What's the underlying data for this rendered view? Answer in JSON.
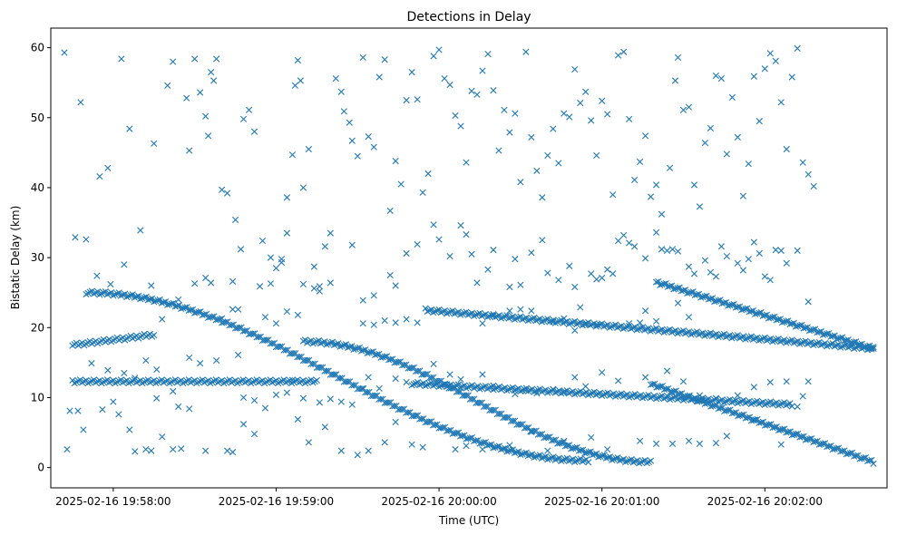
{
  "chart_data": {
    "type": "scatter",
    "title": "Detections in Delay",
    "xlabel": "Time (UTC)",
    "ylabel": "Bistatic Delay (km)",
    "marker": "x",
    "color": "#1f77b4",
    "x_unit": "seconds after 2025-02-16 19:57:00",
    "xlim": [
      -23,
      285
    ],
    "ylim": [
      -2.9,
      62.8
    ],
    "xticks": [
      {
        "value": 0,
        "label": "2025-02-16 19:58:00"
      },
      {
        "value": 60,
        "label": "2025-02-16 19:59:00"
      },
      {
        "value": 120,
        "label": "2025-02-16 20:00:00"
      },
      {
        "value": 180,
        "label": "2025-02-16 20:01:00"
      },
      {
        "value": 240,
        "label": "2025-02-16 20:02:00"
      }
    ],
    "yticks": [
      0,
      10,
      20,
      30,
      40,
      50,
      60
    ],
    "tracks": [
      {
        "name": "track-a",
        "x_range": [
          -10,
          175
        ],
        "y_start": 25.0,
        "y_end": 1.0,
        "shape": "descending-curve"
      },
      {
        "name": "track-b",
        "x_range": [
          70,
          198
        ],
        "y_start": 18.0,
        "y_end": 0.8,
        "shape": "descending-curve"
      },
      {
        "name": "track-c",
        "x_range": [
          198,
          280
        ],
        "y_start": 12.0,
        "y_end": 0.8,
        "shape": "descending"
      },
      {
        "name": "track-d",
        "x_range": [
          -15,
          75
        ],
        "y_start": 12.3,
        "y_end": 12.3,
        "shape": "flat"
      },
      {
        "name": "track-e",
        "x_range": [
          -15,
          15
        ],
        "y_start": 17.5,
        "y_end": 19.0,
        "shape": "rising"
      },
      {
        "name": "track-f",
        "x_range": [
          115,
          280
        ],
        "y_start": 22.5,
        "y_end": 17.0,
        "shape": "descending"
      },
      {
        "name": "track-g",
        "x_range": [
          200,
          280
        ],
        "y_start": 26.5,
        "y_end": 17.0,
        "shape": "descending"
      },
      {
        "name": "track-h",
        "x_range": [
          110,
          250
        ],
        "y_start": 12.0,
        "y_end": 9.0,
        "shape": "descending"
      }
    ],
    "clutter_points": [
      [
        -18,
        59.3
      ],
      [
        -12,
        52.2
      ],
      [
        -5,
        41.6
      ],
      [
        -2,
        42.8
      ],
      [
        3,
        58.4
      ],
      [
        6,
        48.4
      ],
      [
        15,
        46.3
      ],
      [
        20,
        54.6
      ],
      [
        22,
        58.0
      ],
      [
        27,
        52.8
      ],
      [
        28,
        45.3
      ],
      [
        30,
        58.4
      ],
      [
        32,
        53.6
      ],
      [
        34,
        50.2
      ],
      [
        35,
        47.4
      ],
      [
        36,
        56.5
      ],
      [
        37,
        55.3
      ],
      [
        38,
        58.4
      ],
      [
        40,
        39.7
      ],
      [
        42,
        39.2
      ],
      [
        45,
        35.4
      ],
      [
        47,
        31.2
      ],
      [
        48,
        49.8
      ],
      [
        50,
        51.1
      ],
      [
        52,
        48.0
      ],
      [
        55,
        32.4
      ],
      [
        58,
        30.0
      ],
      [
        60,
        28.5
      ],
      [
        62,
        29.3
      ],
      [
        64,
        38.6
      ],
      [
        66,
        44.7
      ],
      [
        67,
        54.6
      ],
      [
        68,
        58.2
      ],
      [
        69,
        55.3
      ],
      [
        70,
        40.0
      ],
      [
        72,
        45.5
      ],
      [
        74,
        28.7
      ],
      [
        76,
        25.9
      ],
      [
        78,
        31.6
      ],
      [
        80,
        33.5
      ],
      [
        82,
        55.6
      ],
      [
        84,
        53.7
      ],
      [
        85,
        50.9
      ],
      [
        87,
        49.3
      ],
      [
        88,
        46.7
      ],
      [
        90,
        44.5
      ],
      [
        92,
        58.6
      ],
      [
        94,
        47.3
      ],
      [
        96,
        45.8
      ],
      [
        98,
        55.8
      ],
      [
        100,
        58.3
      ],
      [
        102,
        36.7
      ],
      [
        104,
        43.8
      ],
      [
        106,
        40.5
      ],
      [
        108,
        52.5
      ],
      [
        110,
        56.5
      ],
      [
        112,
        52.6
      ],
      [
        114,
        39.3
      ],
      [
        116,
        42.0
      ],
      [
        118,
        58.8
      ],
      [
        120,
        59.7
      ],
      [
        122,
        55.6
      ],
      [
        124,
        54.7
      ],
      [
        126,
        50.3
      ],
      [
        128,
        48.8
      ],
      [
        130,
        43.6
      ],
      [
        132,
        53.8
      ],
      [
        134,
        53.3
      ],
      [
        136,
        56.7
      ],
      [
        138,
        59.1
      ],
      [
        140,
        53.9
      ],
      [
        142,
        45.3
      ],
      [
        144,
        51.1
      ],
      [
        146,
        47.9
      ],
      [
        148,
        50.6
      ],
      [
        150,
        40.8
      ],
      [
        152,
        59.4
      ],
      [
        154,
        47.2
      ],
      [
        156,
        42.4
      ],
      [
        158,
        38.6
      ],
      [
        160,
        44.6
      ],
      [
        162,
        48.4
      ],
      [
        164,
        43.5
      ],
      [
        166,
        50.6
      ],
      [
        168,
        50.1
      ],
      [
        170,
        56.9
      ],
      [
        172,
        52.1
      ],
      [
        174,
        53.7
      ],
      [
        176,
        49.6
      ],
      [
        178,
        44.6
      ],
      [
        180,
        52.4
      ],
      [
        182,
        50.5
      ],
      [
        184,
        39.0
      ],
      [
        186,
        58.9
      ],
      [
        188,
        59.4
      ],
      [
        190,
        49.8
      ],
      [
        192,
        41.1
      ],
      [
        194,
        43.7
      ],
      [
        196,
        47.4
      ],
      [
        198,
        38.7
      ],
      [
        200,
        40.4
      ],
      [
        202,
        36.2
      ],
      [
        205,
        42.8
      ],
      [
        207,
        55.3
      ],
      [
        208,
        58.6
      ],
      [
        210,
        51.1
      ],
      [
        212,
        51.5
      ],
      [
        214,
        40.4
      ],
      [
        216,
        37.3
      ],
      [
        218,
        46.4
      ],
      [
        220,
        48.5
      ],
      [
        222,
        56.0
      ],
      [
        224,
        55.6
      ],
      [
        226,
        44.8
      ],
      [
        228,
        52.9
      ],
      [
        230,
        47.2
      ],
      [
        232,
        38.8
      ],
      [
        234,
        43.4
      ],
      [
        236,
        55.9
      ],
      [
        238,
        49.5
      ],
      [
        240,
        57.0
      ],
      [
        242,
        59.2
      ],
      [
        244,
        58.1
      ],
      [
        246,
        52.2
      ],
      [
        248,
        45.5
      ],
      [
        250,
        55.8
      ],
      [
        252,
        59.9
      ],
      [
        254,
        43.6
      ],
      [
        256,
        41.9
      ],
      [
        258,
        40.2
      ],
      [
        -17,
        2.6
      ],
      [
        -16,
        8.1
      ],
      [
        -13,
        8.1
      ],
      [
        -11,
        5.4
      ],
      [
        -4,
        8.3
      ],
      [
        0,
        9.4
      ],
      [
        2,
        7.6
      ],
      [
        6,
        5.4
      ],
      [
        8,
        2.3
      ],
      [
        12,
        2.6
      ],
      [
        14,
        2.4
      ],
      [
        16,
        9.9
      ],
      [
        18,
        4.4
      ],
      [
        22,
        2.6
      ],
      [
        25,
        2.7
      ],
      [
        28,
        8.4
      ],
      [
        34,
        2.4
      ],
      [
        42,
        2.4
      ],
      [
        44,
        2.2
      ],
      [
        48,
        6.2
      ],
      [
        52,
        4.8
      ],
      [
        56,
        8.5
      ],
      [
        68,
        6.9
      ],
      [
        72,
        3.6
      ],
      [
        78,
        5.8
      ],
      [
        84,
        2.4
      ],
      [
        90,
        1.8
      ],
      [
        94,
        2.4
      ],
      [
        100,
        3.6
      ],
      [
        104,
        6.5
      ],
      [
        110,
        3.3
      ],
      [
        114,
        2.9
      ],
      [
        126,
        2.6
      ],
      [
        130,
        3.1
      ],
      [
        136,
        2.6
      ],
      [
        146,
        3.2
      ],
      [
        154,
        5.1
      ],
      [
        160,
        2.4
      ],
      [
        166,
        3.8
      ],
      [
        176,
        4.3
      ],
      [
        182,
        2.6
      ],
      [
        194,
        3.8
      ],
      [
        200,
        3.4
      ],
      [
        206,
        3.4
      ],
      [
        212,
        3.8
      ],
      [
        216,
        3.4
      ],
      [
        222,
        3.5
      ],
      [
        226,
        4.5
      ],
      [
        236,
        6.8
      ],
      [
        246,
        3.3
      ],
      [
        252,
        8.7
      ],
      [
        -14,
        32.9
      ],
      [
        -10,
        32.6
      ],
      [
        -6,
        27.4
      ],
      [
        -1,
        26.2
      ],
      [
        4,
        29.0
      ],
      [
        10,
        33.9
      ],
      [
        14,
        26.0
      ],
      [
        18,
        21.2
      ],
      [
        24,
        24.0
      ],
      [
        30,
        26.3
      ],
      [
        34,
        27.1
      ],
      [
        36,
        26.4
      ],
      [
        44,
        26.6
      ],
      [
        46,
        22.6
      ],
      [
        54,
        25.9
      ],
      [
        58,
        26.3
      ],
      [
        62,
        29.8
      ],
      [
        64,
        33.5
      ],
      [
        70,
        26.2
      ],
      [
        74,
        25.6
      ],
      [
        76,
        25.2
      ],
      [
        80,
        26.4
      ],
      [
        88,
        31.8
      ],
      [
        92,
        23.9
      ],
      [
        96,
        24.6
      ],
      [
        102,
        27.5
      ],
      [
        104,
        26.0
      ],
      [
        108,
        30.6
      ],
      [
        112,
        31.9
      ],
      [
        118,
        34.7
      ],
      [
        120,
        32.6
      ],
      [
        124,
        30.2
      ],
      [
        128,
        34.6
      ],
      [
        130,
        33.3
      ],
      [
        132,
        30.5
      ],
      [
        134,
        26.4
      ],
      [
        138,
        28.3
      ],
      [
        140,
        31.1
      ],
      [
        146,
        25.8
      ],
      [
        148,
        29.8
      ],
      [
        150,
        26.1
      ],
      [
        154,
        30.7
      ],
      [
        158,
        32.5
      ],
      [
        160,
        27.8
      ],
      [
        164,
        26.8
      ],
      [
        168,
        28.8
      ],
      [
        170,
        25.8
      ],
      [
        172,
        22.9
      ],
      [
        176,
        27.7
      ],
      [
        178,
        26.9
      ],
      [
        180,
        27.1
      ],
      [
        182,
        28.3
      ],
      [
        184,
        27.7
      ],
      [
        186,
        32.4
      ],
      [
        188,
        33.2
      ],
      [
        190,
        32.1
      ],
      [
        192,
        31.6
      ],
      [
        196,
        29.9
      ],
      [
        200,
        33.6
      ],
      [
        202,
        31.2
      ],
      [
        204,
        31.0
      ],
      [
        206,
        31.2
      ],
      [
        208,
        30.9
      ],
      [
        212,
        28.7
      ],
      [
        214,
        27.7
      ],
      [
        218,
        29.6
      ],
      [
        220,
        27.9
      ],
      [
        222,
        27.3
      ],
      [
        224,
        31.6
      ],
      [
        226,
        30.2
      ],
      [
        230,
        29.2
      ],
      [
        232,
        28.2
      ],
      [
        234,
        29.8
      ],
      [
        236,
        32.2
      ],
      [
        238,
        30.6
      ],
      [
        240,
        27.3
      ],
      [
        242,
        26.8
      ],
      [
        244,
        31.1
      ],
      [
        246,
        31.0
      ],
      [
        248,
        29.2
      ],
      [
        252,
        31.0
      ],
      [
        256,
        23.7
      ],
      [
        -8,
        14.9
      ],
      [
        -2,
        13.9
      ],
      [
        4,
        13.5
      ],
      [
        8,
        12.8
      ],
      [
        12,
        15.3
      ],
      [
        16,
        14.0
      ],
      [
        22,
        10.9
      ],
      [
        24,
        8.7
      ],
      [
        28,
        15.7
      ],
      [
        32,
        14.9
      ],
      [
        38,
        15.3
      ],
      [
        46,
        16.1
      ],
      [
        48,
        10.0
      ],
      [
        52,
        9.6
      ],
      [
        60,
        10.4
      ],
      [
        64,
        10.7
      ],
      [
        66,
        12.5
      ],
      [
        70,
        9.9
      ],
      [
        76,
        9.3
      ],
      [
        80,
        9.8
      ],
      [
        84,
        9.4
      ],
      [
        88,
        9.0
      ],
      [
        92,
        11.3
      ],
      [
        94,
        12.9
      ],
      [
        98,
        11.3
      ],
      [
        104,
        12.7
      ],
      [
        108,
        12.2
      ],
      [
        118,
        14.8
      ],
      [
        124,
        13.3
      ],
      [
        128,
        12.6
      ],
      [
        136,
        13.3
      ],
      [
        140,
        11.7
      ],
      [
        148,
        10.5
      ],
      [
        152,
        11.0
      ],
      [
        156,
        10.6
      ],
      [
        162,
        11.2
      ],
      [
        166,
        10.8
      ],
      [
        170,
        12.9
      ],
      [
        174,
        11.6
      ],
      [
        180,
        13.6
      ],
      [
        186,
        12.4
      ],
      [
        196,
        12.9
      ],
      [
        204,
        13.8
      ],
      [
        210,
        12.3
      ],
      [
        216,
        10.3
      ],
      [
        222,
        9.9
      ],
      [
        230,
        10.3
      ],
      [
        236,
        11.5
      ],
      [
        242,
        12.2
      ],
      [
        248,
        12.3
      ],
      [
        254,
        10.2
      ],
      [
        256,
        12.3
      ],
      [
        190,
        20.6
      ],
      [
        194,
        20.7
      ],
      [
        196,
        22.4
      ],
      [
        200,
        20.9
      ],
      [
        208,
        23.5
      ],
      [
        212,
        21.5
      ],
      [
        162,
        20.8
      ],
      [
        166,
        21.3
      ],
      [
        170,
        19.6
      ],
      [
        174,
        20.5
      ],
      [
        178,
        20.4
      ],
      [
        136,
        20.6
      ],
      [
        140,
        21.7
      ],
      [
        146,
        22.4
      ],
      [
        150,
        22.6
      ],
      [
        154,
        22.4
      ],
      [
        92,
        20.6
      ],
      [
        96,
        20.4
      ],
      [
        100,
        21.0
      ],
      [
        104,
        20.7
      ],
      [
        108,
        21.2
      ],
      [
        112,
        20.7
      ],
      [
        56,
        21.5
      ],
      [
        60,
        20.6
      ],
      [
        64,
        22.3
      ],
      [
        68,
        21.8
      ],
      [
        40,
        21.3
      ],
      [
        44,
        22.6
      ]
    ]
  }
}
